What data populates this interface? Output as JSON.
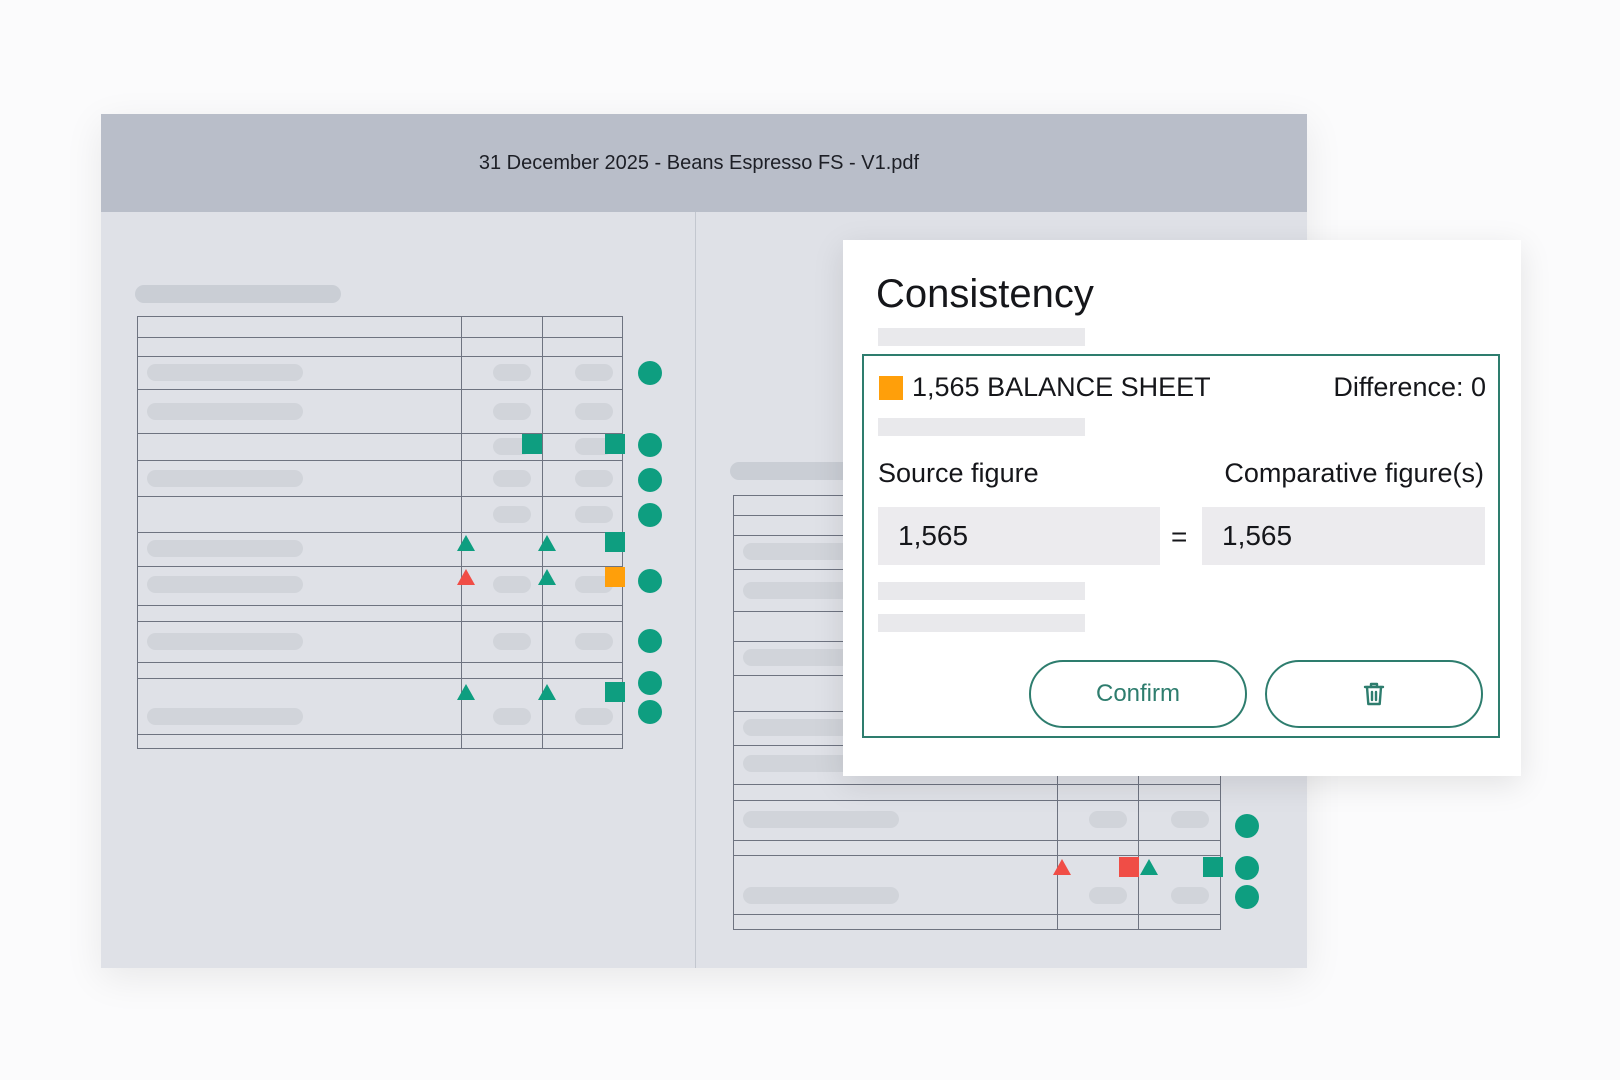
{
  "window": {
    "title": "31 December 2025 - Beans Espresso FS - V1.pdf"
  },
  "panel": {
    "title": "Consistency",
    "item": {
      "marker_color": "#ff9f0a",
      "label": "1,565 BALANCE SHEET",
      "difference_label": "Difference: 0"
    },
    "source_label": "Source figure",
    "comparative_label": "Comparative figure(s)",
    "source_value": "1,565",
    "equals": "=",
    "comparative_value": "1,565",
    "confirm_label": "Confirm",
    "delete_icon": "trash-icon"
  },
  "colors": {
    "accent": "#2e7d6e",
    "ok": "#0e9e80",
    "error": "#f04d46",
    "warning": "#ff9f0a"
  }
}
